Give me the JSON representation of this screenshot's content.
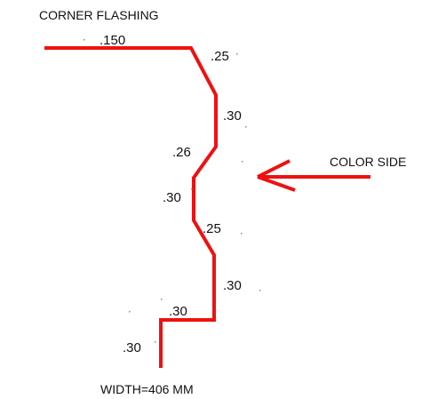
{
  "title": "CORNER FLASHING",
  "color_side_label": "COLOR SIDE",
  "width_label": "WIDTH=406 MM",
  "dimensions": [
    ".150",
    ".25",
    ".30",
    ".26",
    ".30",
    ".25",
    ".30",
    ".30",
    ".30"
  ],
  "colors": {
    "profile": "#ee1111",
    "arrow": "#ee1111",
    "text": "#111111"
  }
}
